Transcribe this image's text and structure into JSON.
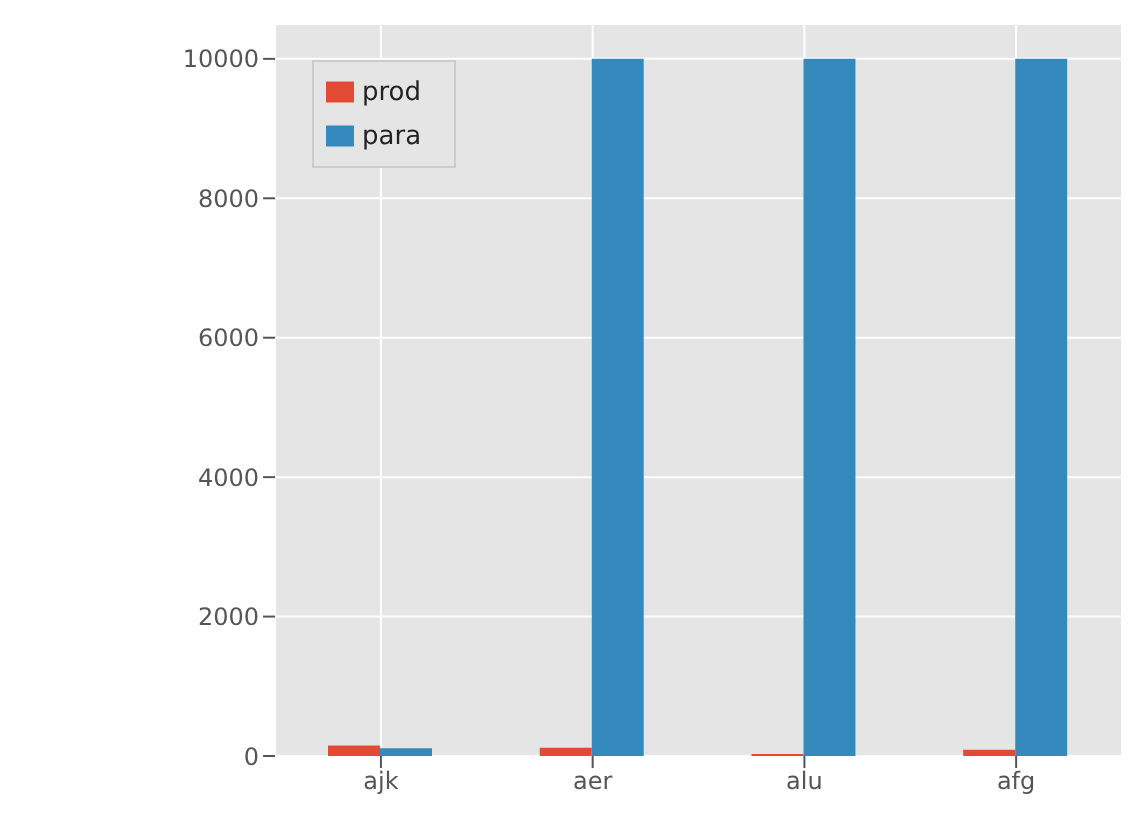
{
  "chart_data": {
    "type": "bar",
    "categories": [
      "ajk",
      "aer",
      "alu",
      "afg"
    ],
    "series": [
      {
        "name": "prod",
        "color": "#e24a33",
        "values": [
          150,
          120,
          30,
          90
        ]
      },
      {
        "name": "para",
        "color": "#348abd",
        "values": [
          110,
          10000,
          10000,
          10000
        ]
      }
    ],
    "ylim": [
      0,
      10500
    ],
    "yticks": [
      0,
      2000,
      4000,
      6000,
      8000,
      10000
    ],
    "grid": true,
    "legend": "top left"
  }
}
